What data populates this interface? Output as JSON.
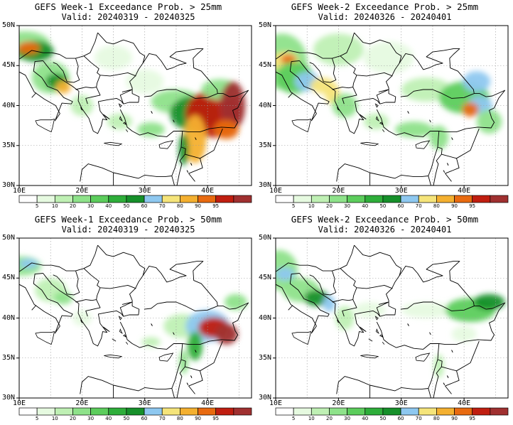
{
  "panels": [
    {
      "id": "p1",
      "title": "GEFS Week-1 Exceedance Prob. > 25mm",
      "valid": "Valid: 20240319 - 20240325"
    },
    {
      "id": "p2",
      "title": "GEFS Week-2 Exceedance Prob. > 25mm",
      "valid": "Valid: 20240326 - 20240401"
    },
    {
      "id": "p3",
      "title": "GEFS Week-1 Exceedance Prob. > 50mm",
      "valid": "Valid: 20240319 - 20240325"
    },
    {
      "id": "p4",
      "title": "GEFS Week-2 Exceedance Prob. > 50mm",
      "valid": "Valid: 20240326 - 20240401"
    }
  ],
  "axes": {
    "lat_labels": [
      "50N",
      "45N",
      "40N",
      "35N",
      "30N"
    ],
    "lon_labels": [
      "10E",
      "20E",
      "30E",
      "40E"
    ]
  },
  "colorbar": {
    "labels": [
      "5",
      "10",
      "20",
      "30",
      "40",
      "50",
      "60",
      "70",
      "80",
      "90",
      "95"
    ],
    "colors": [
      "#ffffff",
      "#e6fae0",
      "#bff0b4",
      "#8ee28a",
      "#5ccd5c",
      "#2eae3a",
      "#16902a",
      "#8ec8f0",
      "#f5e47a",
      "#f4b030",
      "#e86a10",
      "#c01e10",
      "#a03030"
    ]
  }
}
